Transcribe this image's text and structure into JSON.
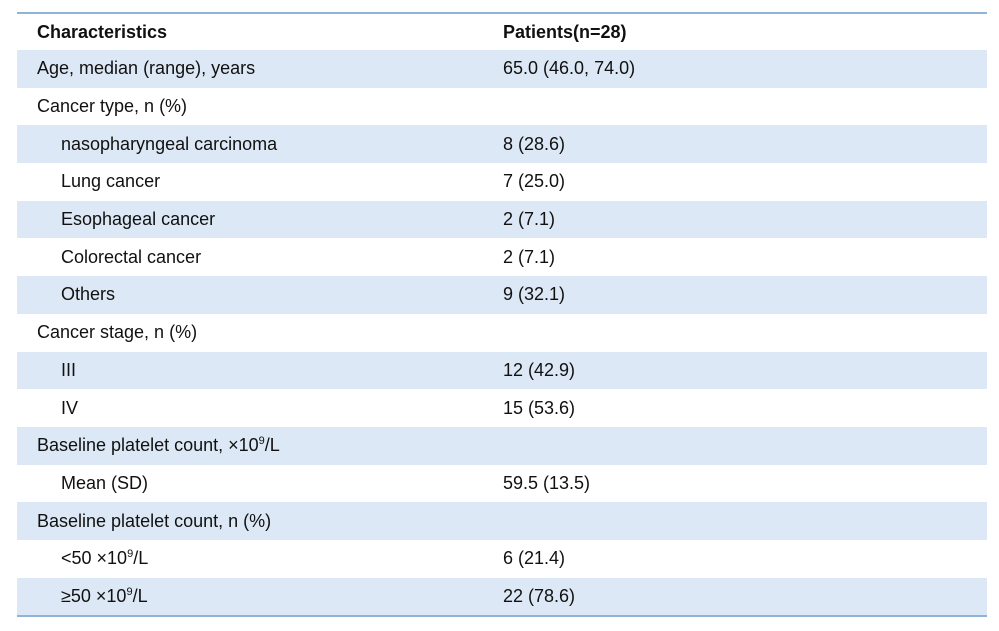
{
  "header": {
    "characteristics": "Characteristics",
    "patients": "Patients(n=28)"
  },
  "rows": [
    {
      "label": "Age, median (range), years",
      "value": "65.0 (46.0, 74.0)"
    },
    {
      "label": "Cancer type, n (%)",
      "value": ""
    },
    {
      "label": "nasopharyngeal carcinoma",
      "value": "8 (28.6)"
    },
    {
      "label": "Lung cancer",
      "value": "7 (25.0)"
    },
    {
      "label": "Esophageal cancer",
      "value": "2 (7.1)"
    },
    {
      "label": "Colorectal cancer",
      "value": "2 (7.1)"
    },
    {
      "label": "Others",
      "value": "9 (32.1)"
    },
    {
      "label": "Cancer stage, n (%)",
      "value": ""
    },
    {
      "label": "III",
      "value": "12 (42.9)"
    },
    {
      "label": "IV",
      "value": "15 (53.6)"
    },
    {
      "label_pre": "Baseline platelet count, ×10",
      "label_sup": "9",
      "label_post": "/L",
      "value": ""
    },
    {
      "label": "Mean (SD)",
      "value": "59.5 (13.5)"
    },
    {
      "label": "Baseline platelet count, n (%)",
      "value": ""
    },
    {
      "label_pre": "<50 ×10",
      "label_sup": "9",
      "label_post": "/L",
      "value": "6 (21.4)"
    },
    {
      "label_pre": "≥50 ×10",
      "label_sup": "9",
      "label_post": "/L",
      "value": "22 (78.6)"
    }
  ],
  "colors": {
    "shaded_row": "#dce8f5",
    "rule": "#8fb4d6"
  }
}
